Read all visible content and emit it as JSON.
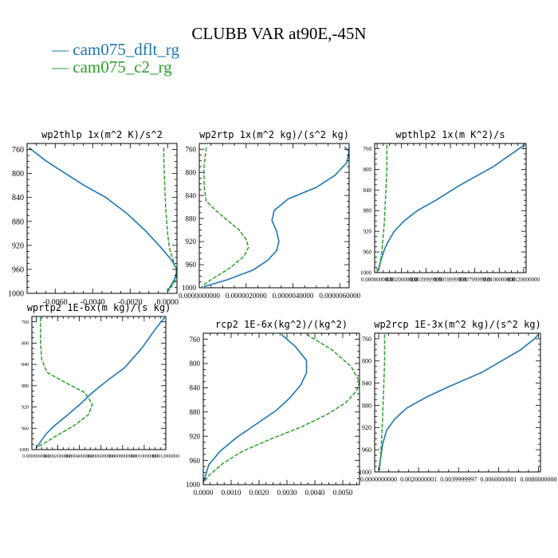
{
  "title": "CLUBB VAR at90E,-45N",
  "colors": {
    "dflt": "#1f77b4",
    "c2": "#2ca02c"
  },
  "legend": [
    {
      "label": "cam075_dflt_rg",
      "color": "#1f77b4",
      "dash": false
    },
    {
      "label": "cam075_c2_rg",
      "color": "#2ca02c",
      "dash": true
    }
  ],
  "chart_data": [
    {
      "type": "line",
      "title": "wp2thlp  1x(m^2 K)/s^2",
      "xlim": [
        -0.0075,
        0.0005
      ],
      "ylim": [
        1000,
        750
      ],
      "xticks": [
        -0.006,
        -0.004,
        -0.002,
        0.0
      ],
      "xtick_labels": [
        "-0.0060",
        "-0.0040",
        "-0.0020",
        "0.0000"
      ],
      "yticks": [
        760,
        800,
        840,
        880,
        920,
        960,
        1000
      ],
      "series": [
        {
          "name": "cam075_dflt_rg",
          "x": [
            -0.0074,
            -0.0065,
            -0.0045,
            -0.0033,
            -0.0022,
            -0.0012,
            -0.0004,
            0.0002,
            0.0005,
            0.0004,
            0.0
          ],
          "y": [
            757,
            779,
            819,
            840,
            866,
            895,
            922,
            944,
            960,
            975,
            996
          ]
        },
        {
          "name": "cam075_c2_rg",
          "x": [
            -0.0002,
            -0.0002,
            -0.00015,
            -0.0001,
            0.0,
            0.0001,
            0.0003,
            0.00045,
            0.0005,
            0.0003,
            0.0
          ],
          "y": [
            757,
            780,
            820,
            860,
            900,
            925,
            945,
            960,
            972,
            985,
            997
          ]
        }
      ]
    },
    {
      "type": "line",
      "title": "wp2rtp  1x(m^2 kg)/(s^2 kg)",
      "xlim": [
        0.0,
        6.4e-06
      ],
      "ylim": [
        1000,
        750
      ],
      "xticks": [
        0.0,
        2e-06,
        4e-06,
        6e-06
      ],
      "xtick_labels": [
        "0.0000000000",
        "0.0000020000",
        "0.0000040000",
        "0.0000060000"
      ],
      "yticks": [
        760,
        800,
        840,
        880,
        920,
        960,
        1000
      ],
      "series": [
        {
          "name": "cam075_dflt_rg",
          "x": [
            6.2e-06,
            6.4e-06,
            6.3e-06,
            5.8e-06,
            5e-06,
            3.8e-06,
            3.2e-06,
            3.1e-06,
            3.3e-06,
            3.4e-06,
            3.3e-06,
            2.9e-06,
            2.3e-06,
            1.2e-06,
            2e-07
          ],
          "y": [
            756,
            764,
            783,
            805,
            826,
            846,
            866,
            883,
            902,
            920,
            936,
            953,
            969,
            986,
            998
          ]
        },
        {
          "name": "cam075_c2_rg",
          "x": [
            3e-07,
            2e-07,
            2e-07,
            3e-07,
            7e-07,
            1.2e-06,
            1.7e-06,
            2e-06,
            2.1e-06,
            1.9e-06,
            1.3e-06,
            5e-07,
            1e-07
          ],
          "y": [
            757,
            790,
            823,
            850,
            866,
            883,
            900,
            916,
            930,
            946,
            966,
            986,
            998
          ]
        }
      ]
    },
    {
      "type": "line",
      "title": "wpthlp2  1x(m K^2)/s",
      "xlim": [
        -0.0002,
        0.0122
      ],
      "ylim": [
        1000,
        750
      ],
      "xticks": [
        0.0,
        0.002,
        0.004,
        0.006,
        0.008,
        0.01,
        0.012
      ],
      "xtick_labels": [
        "0.0000000000",
        "0.0020000000",
        "0.0039999999",
        "0.0059999999",
        "0.0079999999",
        "0.0100000000",
        "0.0120000000"
      ],
      "yticks": [
        760,
        800,
        840,
        880,
        920,
        960,
        1000
      ],
      "series": [
        {
          "name": "cam075_dflt_rg",
          "x": [
            0.0121,
            0.0095,
            0.0067,
            0.0048,
            0.0033,
            0.0022,
            0.0014,
            0.0009,
            0.0006,
            0.0004,
            0.0002,
            0.0001
          ],
          "y": [
            752,
            795,
            832,
            860,
            880,
            900,
            920,
            940,
            955,
            970,
            985,
            997
          ]
        },
        {
          "name": "cam075_c2_rg",
          "x": [
            0.0008,
            0.0008,
            0.0007,
            0.0006,
            0.0005,
            0.0004,
            0.0003,
            0.0002,
            0.0001
          ],
          "y": [
            753,
            800,
            850,
            900,
            930,
            955,
            975,
            990,
            997
          ]
        }
      ]
    },
    {
      "type": "line",
      "title": "wprtp2  1E-6x(m kg)/(s kg)",
      "xlim": [
        -4e-05,
        0.0012
      ],
      "ylim": [
        1000,
        750
      ],
      "xticks": [
        0.0,
        0.0002,
        0.0004,
        0.0006,
        0.0008,
        0.001,
        0.0012
      ],
      "xtick_labels": [
        "0.0000000000",
        "0.0002000000",
        "0.0004000000",
        "0.0006000000",
        "0.0008000000",
        "0.0010000000",
        "0.0012000000"
      ],
      "yticks": [
        760,
        800,
        840,
        880,
        920,
        960,
        1000
      ],
      "series": [
        {
          "name": "cam075_dflt_rg",
          "x": [
            0.00119,
            0.00112,
            0.00098,
            0.00082,
            0.00066,
            0.00052,
            0.00041,
            0.00029,
            0.00017,
            9e-05,
            0.0
          ],
          "y": [
            752,
            769,
            809,
            846,
            870,
            893,
            914,
            935,
            955,
            971,
            997
          ]
        },
        {
          "name": "cam075_c2_rg",
          "x": [
            4e-05,
            4e-05,
            5e-05,
            0.0001,
            0.00026,
            0.00045,
            0.00052,
            0.00048,
            0.00035,
            0.00018,
            0.0
          ],
          "y": [
            752,
            800,
            830,
            855,
            873,
            893,
            915,
            935,
            955,
            975,
            997
          ]
        }
      ]
    },
    {
      "type": "line",
      "title": "rcp2  1E-6x(kg^2)/(kg^2)",
      "xlim": [
        0.0,
        0.0056
      ],
      "ylim": [
        1000,
        750
      ],
      "xticks": [
        0.0,
        0.001,
        0.002,
        0.003,
        0.004,
        0.005
      ],
      "xtick_labels": [
        "0.0000",
        "0.0010",
        "0.0020",
        "0.0030",
        "0.0040",
        "0.0050"
      ],
      "yticks": [
        760,
        800,
        840,
        880,
        920,
        960,
        1000
      ],
      "series": [
        {
          "name": "cam075_dflt_rg",
          "x": [
            0.0028,
            0.0033,
            0.0037,
            0.0037,
            0.0035,
            0.0031,
            0.0026,
            0.0019,
            0.0012,
            0.0006,
            0.0002,
            0.0
          ],
          "y": [
            752,
            772,
            795,
            815,
            835,
            857,
            878,
            900,
            922,
            945,
            967,
            997
          ]
        },
        {
          "name": "cam075_c2_rg",
          "x": [
            0.0037,
            0.0046,
            0.0053,
            0.0056,
            0.0055,
            0.0051,
            0.0044,
            0.0035,
            0.0024,
            0.0014,
            0.0007,
            0.0002,
            0.0
          ],
          "y": [
            752,
            777,
            805,
            830,
            845,
            865,
            885,
            905,
            925,
            945,
            965,
            985,
            997
          ]
        }
      ]
    },
    {
      "type": "line",
      "title": "wp2rcp  1E-3x(m^2 kg)/(s^2 kg)",
      "xlim": [
        -0.0002,
        0.0081
      ],
      "ylim": [
        1000,
        750
      ],
      "xticks": [
        0.0,
        0.002,
        0.004,
        0.006,
        0.008
      ],
      "xtick_labels": [
        "0.0000000000",
        "0.0020000001",
        "0.0039999997",
        "0.0060000001",
        "0.0080000000"
      ],
      "yticks": [
        760,
        800,
        840,
        880,
        920,
        960,
        1000
      ],
      "series": [
        {
          "name": "cam075_dflt_rg",
          "x": [
            0.008,
            0.0078,
            0.0071,
            0.0052,
            0.0036,
            0.0024,
            0.0014,
            0.0008,
            0.0004,
            0.0002,
            0.0001,
            0.0
          ],
          "y": [
            752,
            760,
            780,
            820,
            845,
            865,
            885,
            905,
            925,
            950,
            975,
            997
          ]
        },
        {
          "name": "cam075_c2_rg",
          "x": [
            0.0003,
            0.0003,
            0.00025,
            0.0002,
            0.00015,
            0.0001,
            5e-05
          ],
          "y": [
            752,
            800,
            850,
            900,
            940,
            970,
            997
          ]
        }
      ]
    }
  ]
}
